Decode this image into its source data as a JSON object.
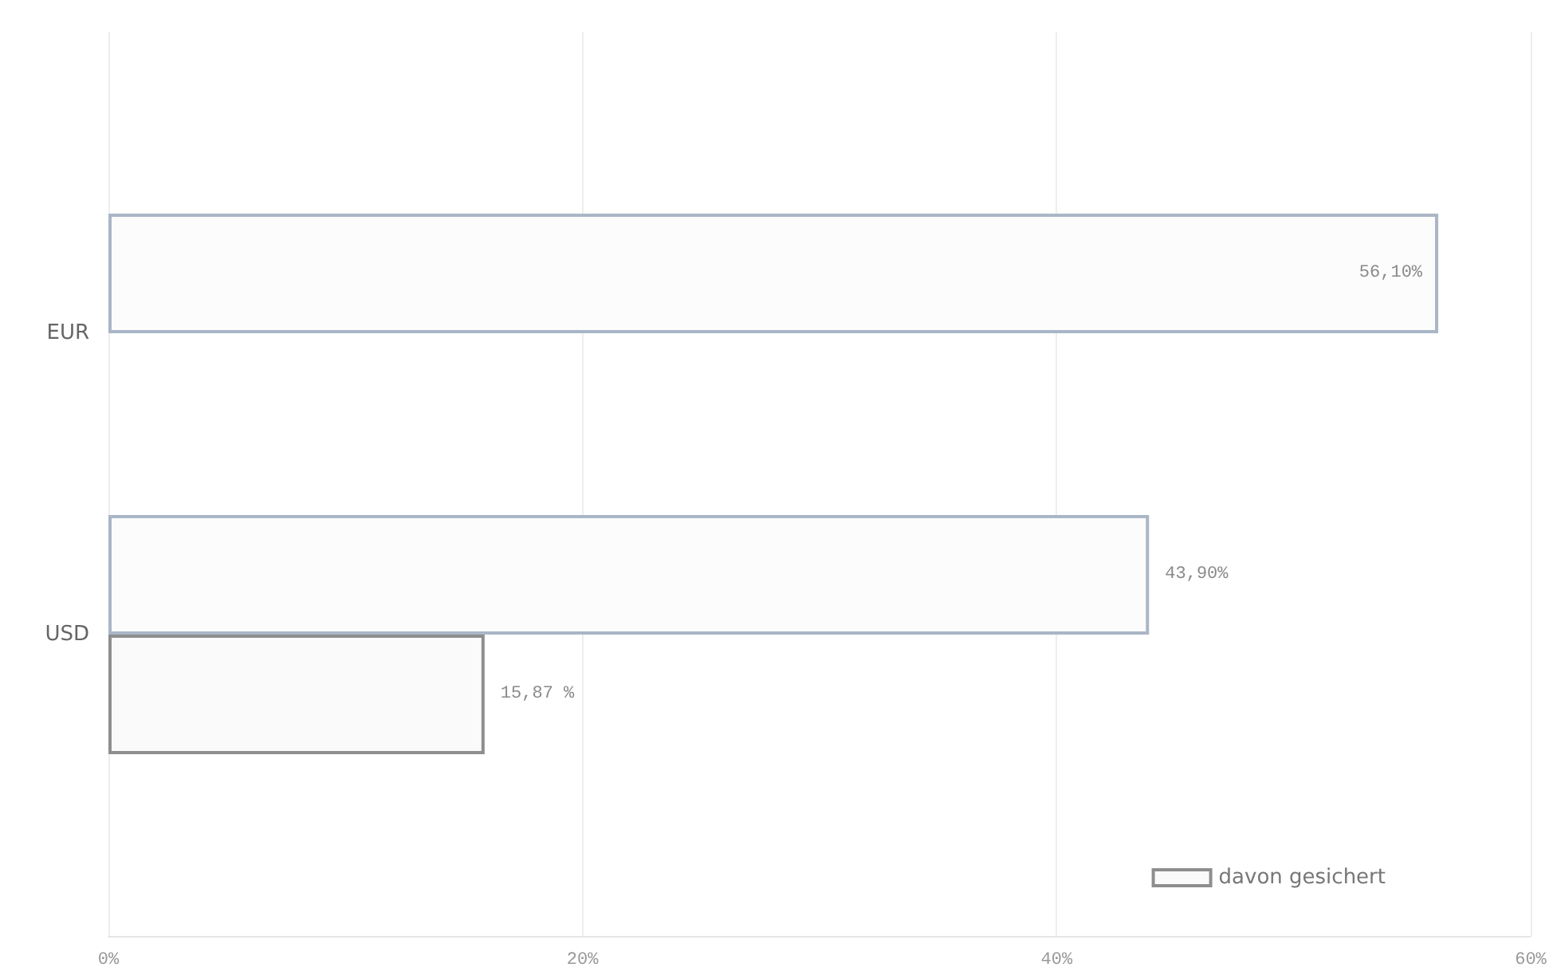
{
  "chart_data": {
    "type": "bar",
    "orientation": "horizontal",
    "categories": [
      "EUR",
      "USD"
    ],
    "series": [
      {
        "color": "#a9b6c6",
        "values": [
          56.1,
          43.9
        ],
        "value_labels": [
          "56,10%",
          "43,90%"
        ]
      },
      {
        "name": "davon gesichert",
        "color": "#8e8e8e",
        "values": [
          null,
          15.87
        ],
        "value_labels": [
          null,
          "15,87 %"
        ]
      }
    ],
    "xlim": [
      0,
      60
    ],
    "xticks": [
      {
        "value": 0,
        "label": "0%"
      },
      {
        "value": 20,
        "label": "20%"
      },
      {
        "value": 40,
        "label": "40%"
      },
      {
        "value": 60,
        "label": "60%"
      }
    ],
    "grid": "x",
    "legend": "bottom right"
  }
}
